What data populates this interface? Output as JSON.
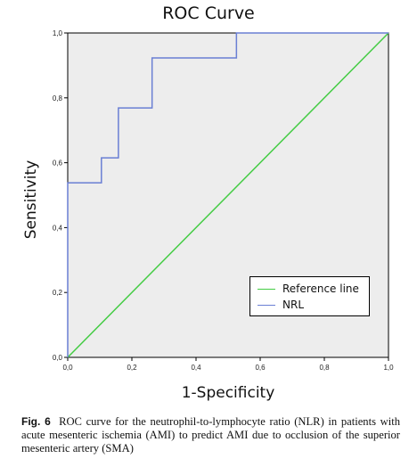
{
  "chart_data": {
    "type": "line",
    "title": "ROC Curve",
    "xlabel": "1-Specificity",
    "ylabel": "Sensitivity",
    "xlim": [
      0,
      1
    ],
    "ylim": [
      0,
      1
    ],
    "x_ticks": [
      "0,0",
      "0,2",
      "0,4",
      "0,6",
      "0,8",
      "1,0"
    ],
    "y_ticks": [
      "0,0",
      "0,2",
      "0,4",
      "0,6",
      "0,8",
      "1,0"
    ],
    "grid": false,
    "legend_position": "bottom-right",
    "series": [
      {
        "name": "Reference line",
        "color": "#44cc44",
        "x": [
          0,
          1
        ],
        "y": [
          0,
          1
        ]
      },
      {
        "name": "NRL",
        "color": "#6a7fd4",
        "x": [
          0,
          0,
          0.105,
          0.105,
          0.158,
          0.158,
          0.263,
          0.263,
          0.526,
          0.526,
          1.0
        ],
        "y": [
          0,
          0.538,
          0.538,
          0.615,
          0.615,
          0.769,
          0.769,
          0.923,
          0.923,
          1.0,
          1.0
        ]
      }
    ]
  },
  "caption": {
    "label": "Fig. 6",
    "text": "ROC curve for the neutrophil-to-lymphocyte ratio (NLR) in patients with acute mesenteric ischemia (AMI) to predict AMI due to occlusion of the superior mesenteric artery (SMA)"
  },
  "colors": {
    "plot_background": "#ededed",
    "axis": "#000000"
  }
}
